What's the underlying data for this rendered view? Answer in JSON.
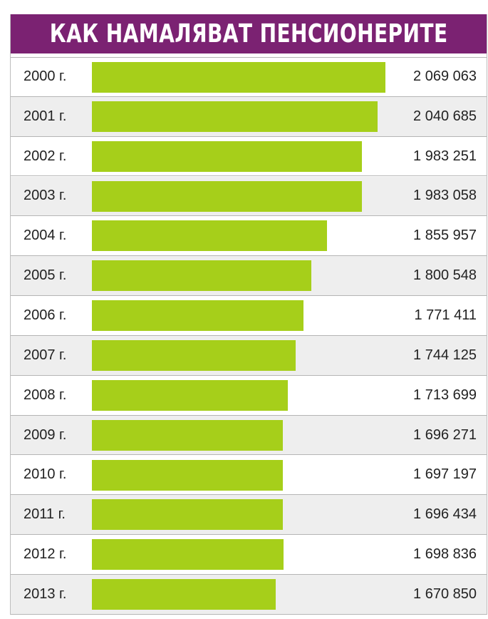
{
  "chart_data": {
    "type": "bar",
    "orientation": "horizontal",
    "title": "КАК НАМАЛЯВАТ ПЕНСИОНЕРИТЕ",
    "categories": [
      "2000 г.",
      "2001 г.",
      "2002 г.",
      "2003 г.",
      "2004 г.",
      "2005 г.",
      "2006 г.",
      "2007 г.",
      "2008 г.",
      "2009 г.",
      "2010 г.",
      "2011 г.",
      "2012 г.",
      "2013 г."
    ],
    "values": [
      2069063,
      2040685,
      1983251,
      1983058,
      1855957,
      1800548,
      1771411,
      1744125,
      1713699,
      1696271,
      1697197,
      1696434,
      1698836,
      1670850
    ],
    "value_labels": [
      "2 069 063",
      "2 040 685",
      "1 983 251",
      "1 983 058",
      "1 855 957",
      "1 800 548",
      "1 771 411",
      "1 744 125",
      "1 713 699",
      "1 696 271",
      "1 697 197",
      "1 696 434",
      "1 698 836",
      "1 670 850"
    ],
    "xlim": [
      0,
      2069063
    ],
    "grid": false,
    "legend": "none",
    "colors": {
      "bar": "#a6cf1a",
      "title_background": "#7b2272",
      "title_text": "#ffffff",
      "row_alt": "#eeeeee"
    }
  }
}
